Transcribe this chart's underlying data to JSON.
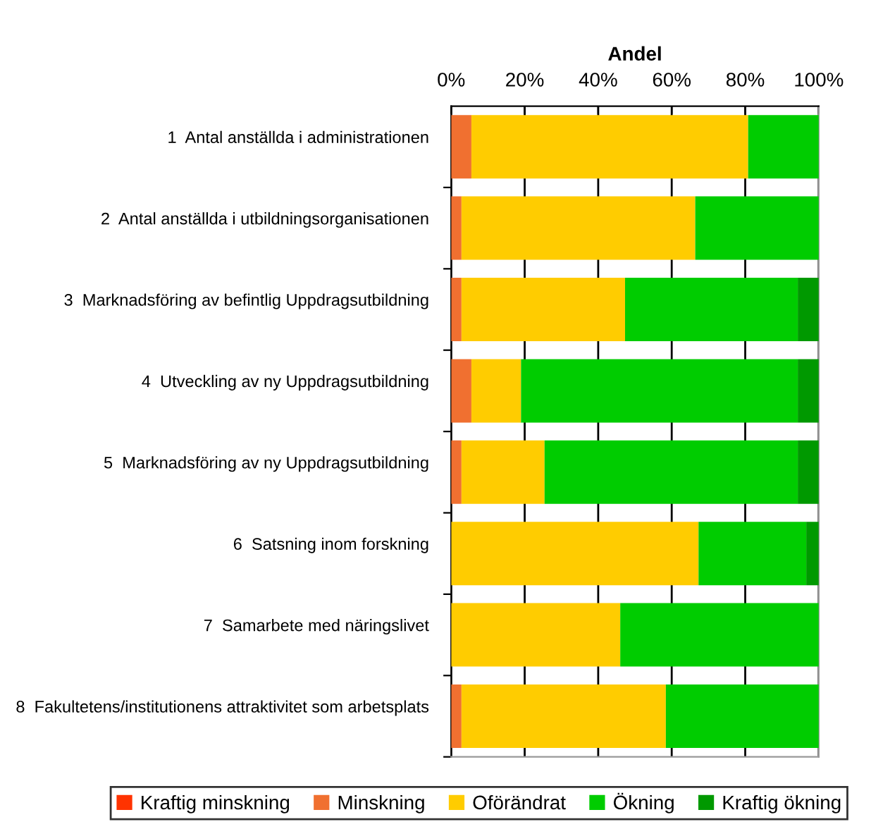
{
  "chart_data": {
    "type": "bar",
    "orientation": "horizontal",
    "stacked": true,
    "xlabel": "Andel",
    "categories": [
      "1  Antal anställda i administrationen",
      "2  Antal anställda i utbildningsorganisationen",
      "3  Marknadsföring av befintlig Uppdragsutbildning",
      "4  Utveckling av ny Uppdragsutbildning",
      "5  Marknadsföring av ny Uppdragsutbildning",
      "6  Satsning inom forskning",
      "7  Samarbete med näringslivet",
      "8  Fakultetens/institutionens attraktivitet som arbetsplats"
    ],
    "series": [
      {
        "name": "Kraftig minskning",
        "color": "#ff3300",
        "values": [
          0,
          0,
          0,
          0,
          0,
          0,
          0,
          0
        ]
      },
      {
        "name": "Minskning",
        "color": "#f07030",
        "values": [
          5.5,
          2.8,
          2.8,
          5.5,
          2.8,
          0,
          0,
          2.8
        ]
      },
      {
        "name": "Oförändrat",
        "color": "#ffcc00",
        "values": [
          75.3,
          63.6,
          44.5,
          13.5,
          22.6,
          67.3,
          46.0,
          55.6
        ]
      },
      {
        "name": "Ökning",
        "color": "#00cc00",
        "values": [
          19.2,
          33.6,
          47.0,
          75.3,
          68.9,
          29.3,
          54.0,
          41.6
        ]
      },
      {
        "name": "Kraftig ökning",
        "color": "#009900",
        "values": [
          0,
          0,
          5.7,
          5.7,
          5.7,
          3.4,
          0,
          0
        ]
      }
    ],
    "xlim": [
      0,
      100
    ],
    "xticks": [
      {
        "value": 0,
        "label": "0%"
      },
      {
        "value": 20,
        "label": "20%"
      },
      {
        "value": 40,
        "label": "40%"
      },
      {
        "value": 60,
        "label": "60%"
      },
      {
        "value": 80,
        "label": "80%"
      },
      {
        "value": 100,
        "label": "100%"
      }
    ],
    "grid": "x",
    "legend": "bottom"
  }
}
